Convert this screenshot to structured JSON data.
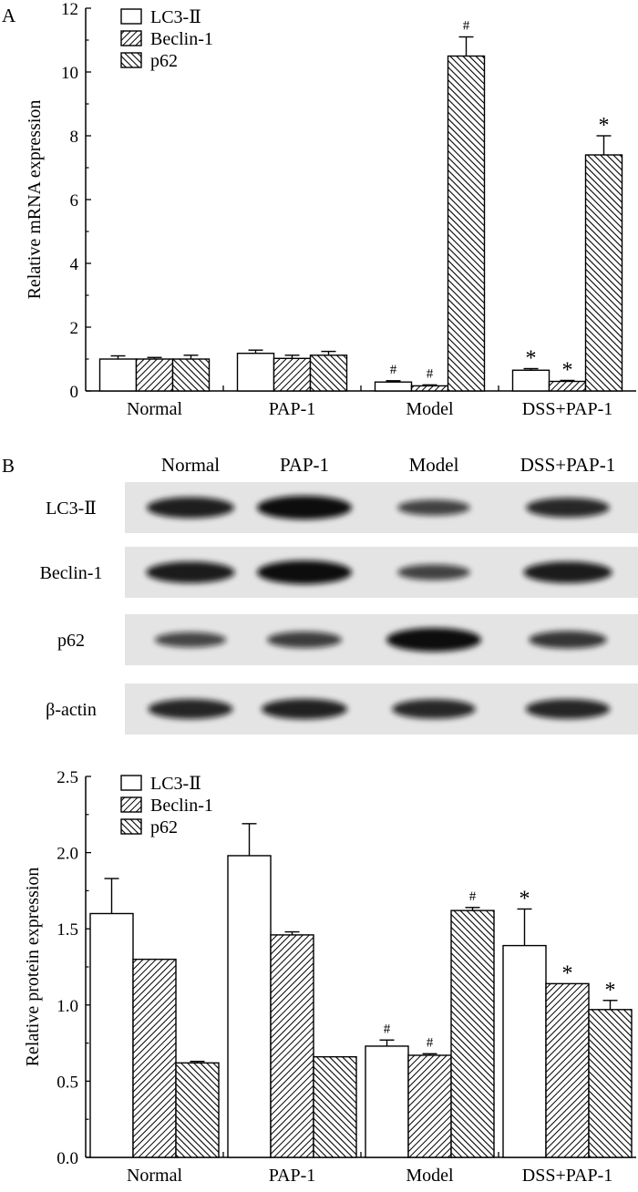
{
  "panel_a_label": "A",
  "panel_b_label": "B",
  "legend": [
    "LC3-Ⅱ",
    "Beclin-1",
    "p62"
  ],
  "blot": {
    "lane_labels": [
      "Normal",
      "PAP-1",
      "Model",
      "DSS+PAP-1"
    ],
    "row_labels": [
      "LC3-Ⅱ",
      "Beclin-1",
      "p62",
      "β-actin"
    ],
    "band_intensity": [
      [
        0.82,
        1.0,
        0.45,
        0.72
      ],
      [
        0.85,
        1.0,
        0.45,
        0.85
      ],
      [
        0.42,
        0.5,
        1.0,
        0.58
      ],
      [
        0.75,
        0.78,
        0.72,
        0.74
      ]
    ]
  },
  "chart_data": [
    {
      "type": "bar",
      "ylabel": "Relative mRNA expression",
      "categories": [
        "Normal",
        "PAP-1",
        "Model",
        "DSS+PAP-1"
      ],
      "ylim": [
        0,
        12
      ],
      "yticks": [
        "0",
        "2",
        "4",
        "6",
        "8",
        "10",
        "12"
      ],
      "series": [
        {
          "name": "LC3-Ⅱ",
          "values": [
            1.0,
            1.18,
            0.28,
            0.65
          ],
          "errors": [
            0.1,
            0.1,
            0.04,
            0.05
          ],
          "annotations": [
            "",
            "",
            "#",
            "*"
          ]
        },
        {
          "name": "Beclin-1",
          "values": [
            1.0,
            1.02,
            0.16,
            0.3
          ],
          "errors": [
            0.05,
            0.1,
            0.03,
            0.03
          ],
          "annotations": [
            "",
            "",
            "#",
            "*"
          ]
        },
        {
          "name": "p62",
          "values": [
            1.0,
            1.12,
            10.5,
            7.4
          ],
          "errors": [
            0.12,
            0.12,
            0.6,
            0.6
          ],
          "annotations": [
            "",
            "",
            "#",
            "*"
          ]
        }
      ]
    },
    {
      "type": "bar",
      "ylabel": "Relative protein expression",
      "categories": [
        "Normal",
        "PAP-1",
        "Model",
        "DSS+PAP-1"
      ],
      "ylim": [
        0,
        2.5
      ],
      "yticks": [
        "0.0",
        "0.5",
        "1.0",
        "1.5",
        "2.0",
        "2.5"
      ],
      "series": [
        {
          "name": "LC3-Ⅱ",
          "values": [
            1.6,
            1.98,
            0.73,
            1.39
          ],
          "errors": [
            0.23,
            0.21,
            0.04,
            0.24
          ],
          "annotations": [
            "",
            "",
            "#",
            "*"
          ]
        },
        {
          "name": "Beclin-1",
          "values": [
            1.3,
            1.46,
            0.67,
            1.14
          ],
          "errors": [
            0.0,
            0.02,
            0.01,
            0.0
          ],
          "annotations": [
            "",
            "",
            "#",
            "*"
          ]
        },
        {
          "name": "p62",
          "values": [
            0.62,
            0.66,
            1.62,
            0.97
          ],
          "errors": [
            0.01,
            0.0,
            0.02,
            0.06
          ],
          "annotations": [
            "",
            "",
            "#",
            "*"
          ]
        }
      ]
    }
  ]
}
